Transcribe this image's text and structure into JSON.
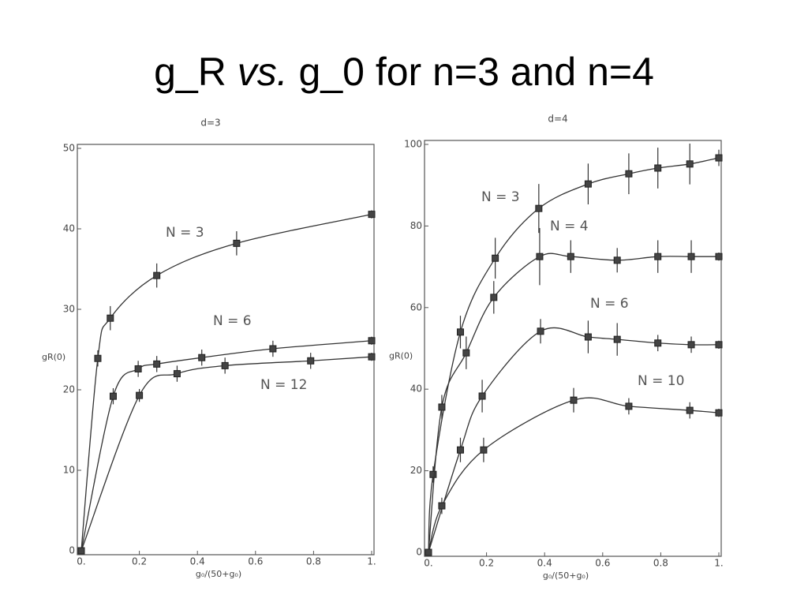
{
  "title": [
    "g_R",
    "vs.",
    "g_0 for n=3 and n=4"
  ],
  "chart_data": [
    {
      "type": "line",
      "title": "d=3",
      "xlabel": "g₀/(50+g₀)",
      "ylabel": "gR(0)",
      "xlim": [
        0,
        1
      ],
      "ylim": [
        0,
        50
      ],
      "xticks": [
        {
          "value": 0,
          "label": "0."
        },
        0.2,
        0.4,
        0.6,
        0.8,
        {
          "value": 1,
          "label": "1."
        }
      ],
      "yticks": [
        0,
        10,
        20,
        30,
        40,
        50
      ],
      "series": [
        {
          "name": "N = 3",
          "color": "#333333",
          "x": [
            0,
            0.057,
            0.1,
            0.26,
            0.535,
            1
          ],
          "values": [
            0,
            23.9,
            28.9,
            34.2,
            38.2,
            41.8
          ],
          "errors": [
            0,
            1,
            1.5,
            1.5,
            1.5,
            0.5
          ]
        },
        {
          "name": "N = 6",
          "color": "#333333",
          "x": [
            0,
            0.11,
            0.196,
            0.26,
            0.415,
            0.66,
            1
          ],
          "values": [
            0,
            19.2,
            22.6,
            23.2,
            24,
            25.1,
            26.1
          ],
          "errors": [
            0,
            1,
            1,
            1,
            1,
            1,
            0.5
          ]
        },
        {
          "name": "N = 12",
          "color": "#333333",
          "x": [
            0,
            0.2,
            0.33,
            0.495,
            0.79,
            1
          ],
          "values": [
            0,
            19.3,
            22,
            23,
            23.6,
            24.1
          ],
          "errors": [
            0,
            0.8,
            1,
            1,
            1,
            0.5
          ]
        }
      ]
    },
    {
      "type": "line",
      "title": "d=4",
      "xlabel": "g₀/(50+g₀)",
      "ylabel": "gR(0)",
      "xlim": [
        0,
        1
      ],
      "ylim": [
        0,
        100
      ],
      "xticks": [
        {
          "value": 0,
          "label": "0."
        },
        0.2,
        0.4,
        0.6,
        0.8,
        {
          "value": 1,
          "label": "1."
        }
      ],
      "yticks": [
        0,
        20,
        40,
        60,
        80,
        100
      ],
      "series": [
        {
          "name": "N = 3",
          "color": "#333333",
          "x": [
            0,
            0.016,
            0.11,
            0.23,
            0.38,
            0.55,
            0.69,
            0.79,
            0.9,
            1
          ],
          "values": [
            0,
            19.1,
            54,
            72.1,
            84.3,
            90.3,
            92.8,
            94.2,
            95.2,
            96.7
          ],
          "errors": [
            0,
            2,
            4,
            5,
            6,
            5,
            5,
            5,
            5,
            2
          ]
        },
        {
          "name": "N = 4",
          "color": "#333333",
          "x": [
            0,
            0.046,
            0.13,
            0.225,
            0.383,
            0.49,
            0.65,
            0.79,
            0.905,
            1
          ],
          "values": [
            0,
            35.6,
            48.9,
            62.5,
            72.5,
            72.5,
            71.6,
            72.5,
            72.5,
            72.5
          ],
          "errors": [
            0,
            3,
            4,
            4,
            7,
            4,
            3,
            4,
            4,
            1
          ]
        },
        {
          "name": "N = 6",
          "color": "#333333",
          "x": [
            0,
            0.11,
            0.185,
            0.386,
            0.55,
            0.65,
            0.79,
            0.905,
            1
          ],
          "values": [
            0,
            25.1,
            38.3,
            54.2,
            52.8,
            52.2,
            51.3,
            50.9,
            50.9
          ],
          "errors": [
            0,
            3,
            4,
            3,
            4,
            4,
            2,
            2,
            1
          ]
        },
        {
          "name": "N = 10",
          "color": "#333333",
          "x": [
            0,
            0.046,
            0.19,
            0.5,
            0.69,
            0.9,
            1
          ],
          "values": [
            0,
            11.4,
            25.1,
            37.3,
            35.8,
            34.8,
            34.2
          ],
          "errors": [
            0,
            2,
            3,
            3,
            2,
            2,
            1
          ]
        }
      ]
    }
  ]
}
